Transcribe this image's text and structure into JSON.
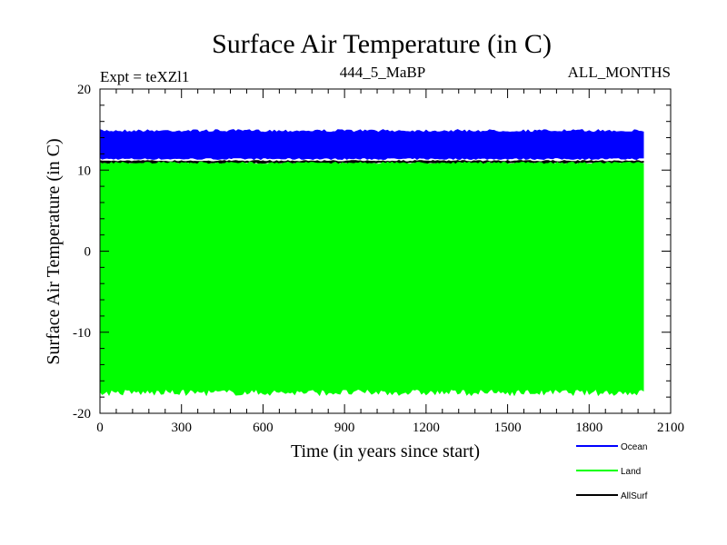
{
  "chart_data": {
    "type": "area",
    "title": "Surface Air Temperature (in C)",
    "experiment_label": "Expt = teXZl1",
    "subtitle_center": "444_5_MaBP",
    "subtitle_right": "ALL_MONTHS",
    "xlabel": "Time (in years since start)",
    "ylabel": "Surface Air Temperature (in C)",
    "xlim": [
      0,
      2100
    ],
    "ylim": [
      -20,
      20
    ],
    "x_ticks": [
      0,
      300,
      600,
      900,
      1200,
      1500,
      1800,
      2100
    ],
    "y_ticks": [
      -20,
      -10,
      0,
      10,
      20
    ],
    "x_tick_labels": [
      "0",
      "300",
      "600",
      "900",
      "1200",
      "1500",
      "1800",
      "2100"
    ],
    "y_tick_labels": [
      "-20",
      "-10",
      "0",
      "10",
      "20"
    ],
    "x_end": 2000,
    "series": [
      {
        "name": "Ocean",
        "color": "#0000ff",
        "min": 11.3,
        "max": 15.0
      },
      {
        "name": "Land",
        "color": "#00ff00",
        "min": -17.8,
        "max": 11.0
      },
      {
        "name": "AllSurf",
        "color": "#000000",
        "min": 10.8,
        "max": 11.2
      }
    ],
    "legend": [
      {
        "name": "Ocean",
        "color": "#0000ff"
      },
      {
        "name": "Land",
        "color": "#00ff00"
      },
      {
        "name": "AllSurf",
        "color": "#000000"
      }
    ]
  }
}
